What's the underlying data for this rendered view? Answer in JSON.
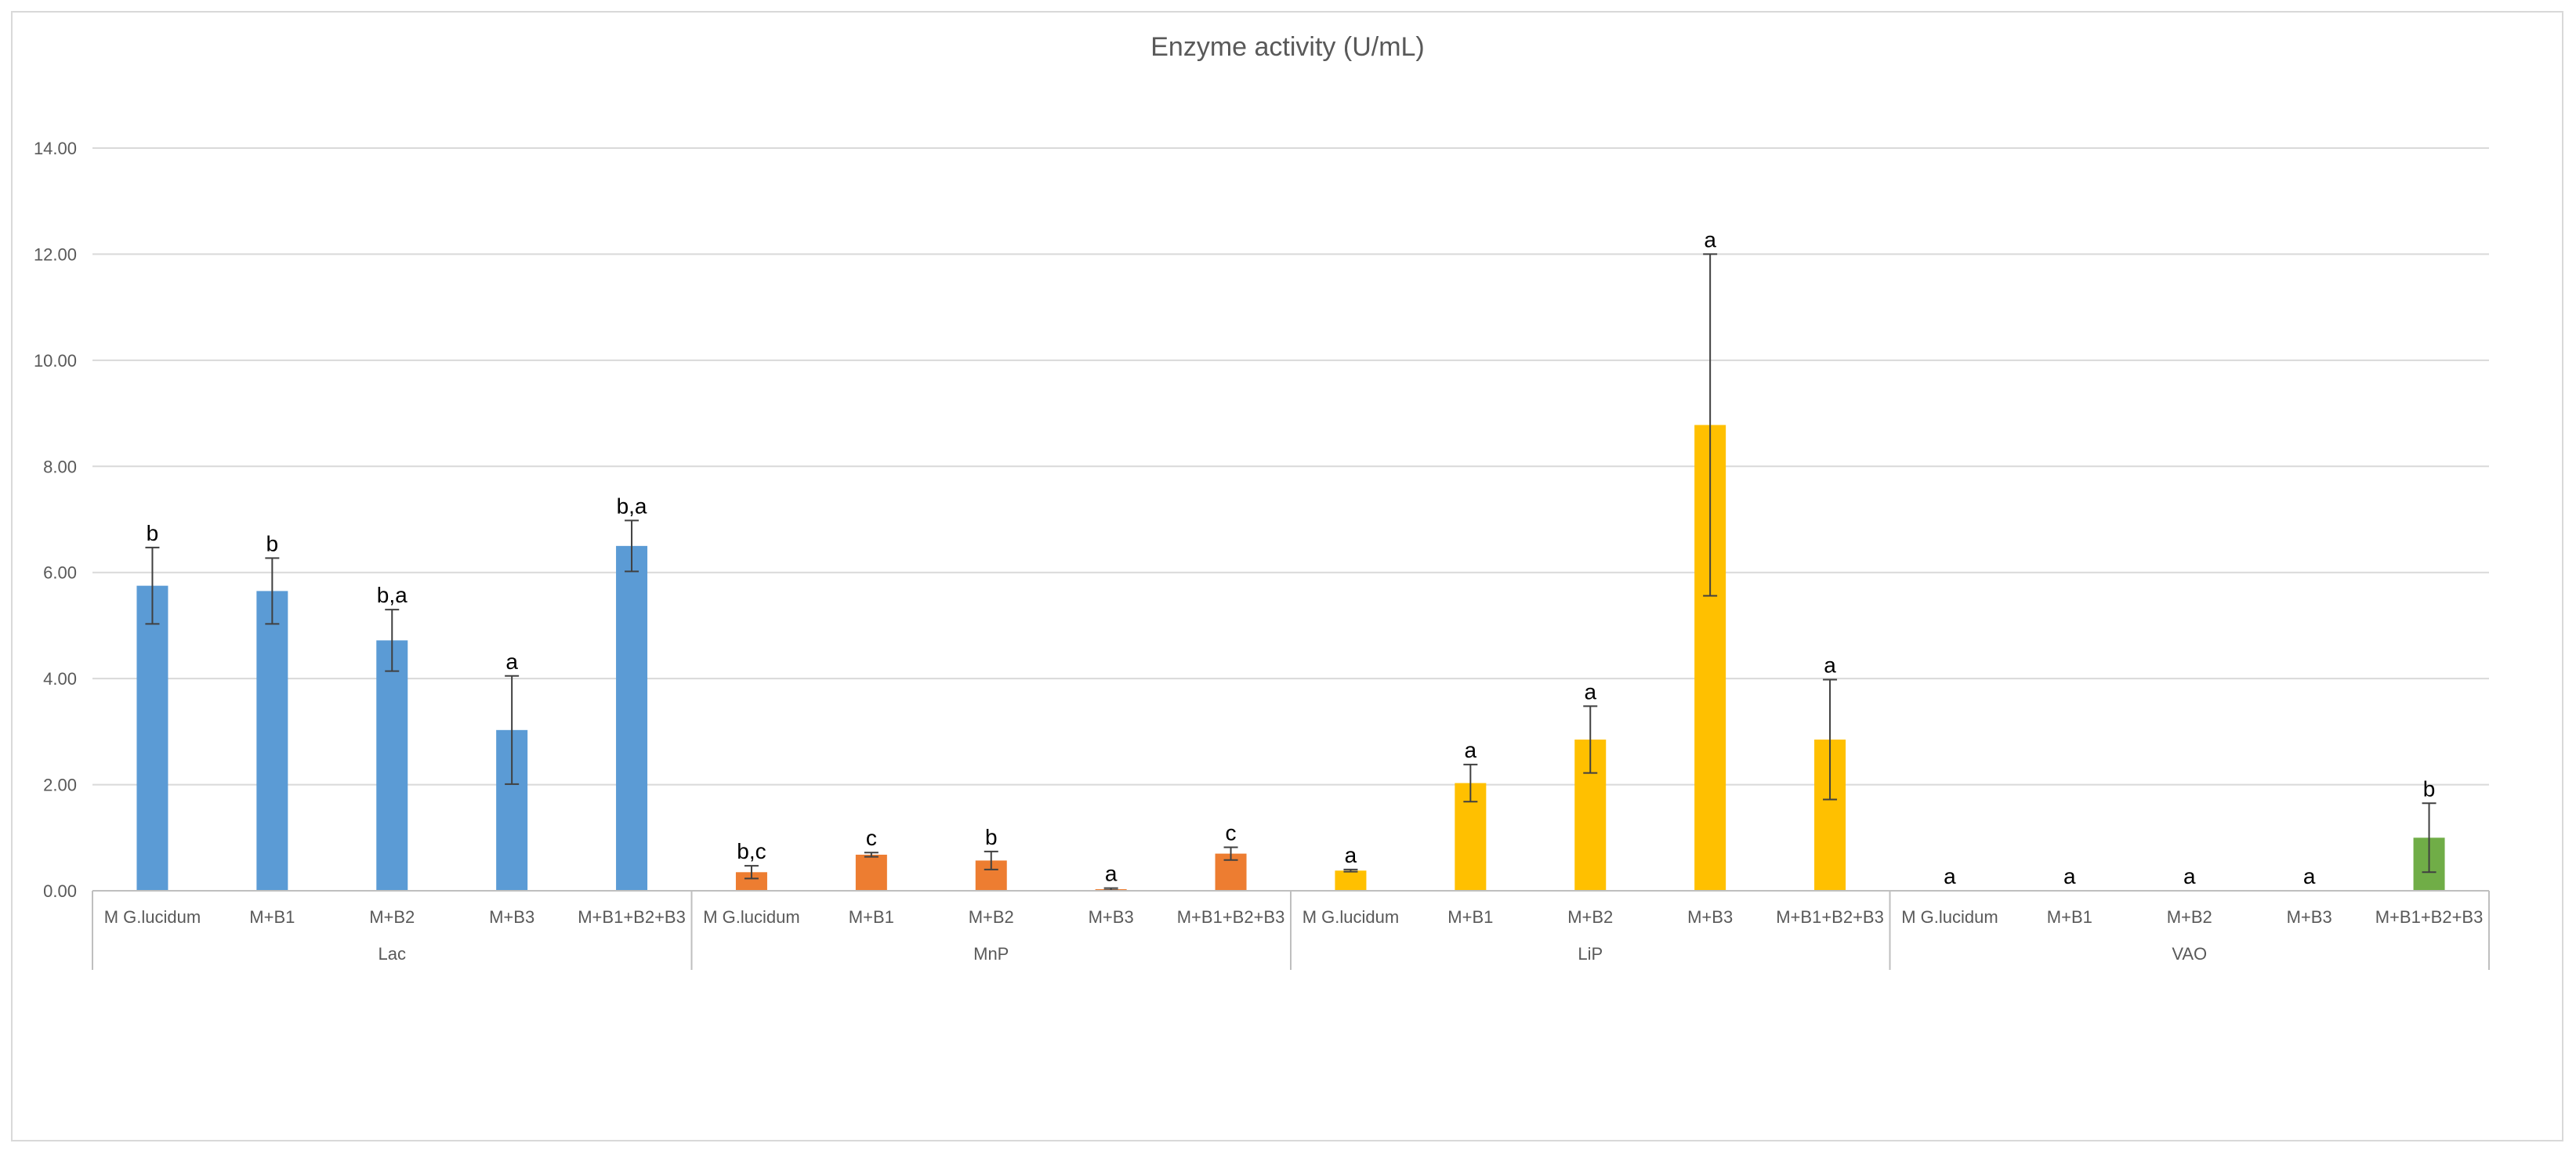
{
  "chart_data": {
    "type": "bar",
    "title": "Enzyme activity (U/mL)",
    "xlabel": "",
    "ylabel": "",
    "ylim": [
      0,
      14
    ],
    "ytick_values": [
      0,
      2,
      4,
      6,
      8,
      10,
      12,
      14
    ],
    "ytick_labels": [
      "0.00",
      "2.00",
      "4.00",
      "6.00",
      "8.00",
      "10.00",
      "12.00",
      "14.00"
    ],
    "grid": true,
    "legend": "none",
    "categories": [
      "M G.lucidum",
      "M+B1",
      "M+B2",
      "M+B3",
      "M+B1+B2+B3"
    ],
    "groups": [
      {
        "name": "Lac",
        "color": "#5B9BD5",
        "values": [
          5.75,
          5.65,
          4.72,
          3.03,
          6.5
        ],
        "errors": [
          0.72,
          0.62,
          0.58,
          1.02,
          0.48
        ],
        "labels": [
          "b",
          "b",
          "b,a",
          "a",
          "b,a"
        ]
      },
      {
        "name": "MnP",
        "color": "#ED7D31",
        "values": [
          0.35,
          0.68,
          0.57,
          0.03,
          0.7
        ],
        "errors": [
          0.12,
          0.04,
          0.17,
          0.02,
          0.12
        ],
        "labels": [
          "b,c",
          "c",
          "b",
          "a",
          "c"
        ]
      },
      {
        "name": "LiP",
        "color": "#FFC000",
        "values": [
          0.38,
          2.03,
          2.85,
          8.78,
          2.85
        ],
        "errors": [
          0.02,
          0.35,
          0.63,
          3.22,
          1.13
        ],
        "labels": [
          "a",
          "a",
          "a",
          "a",
          "a"
        ]
      },
      {
        "name": "VAO",
        "color": "#70AD47",
        "values": [
          0,
          0,
          0,
          0,
          1.0
        ],
        "errors": [
          0,
          0,
          0,
          0,
          0.65
        ],
        "labels": [
          "a",
          "a",
          "a",
          "a",
          "b"
        ]
      }
    ]
  }
}
